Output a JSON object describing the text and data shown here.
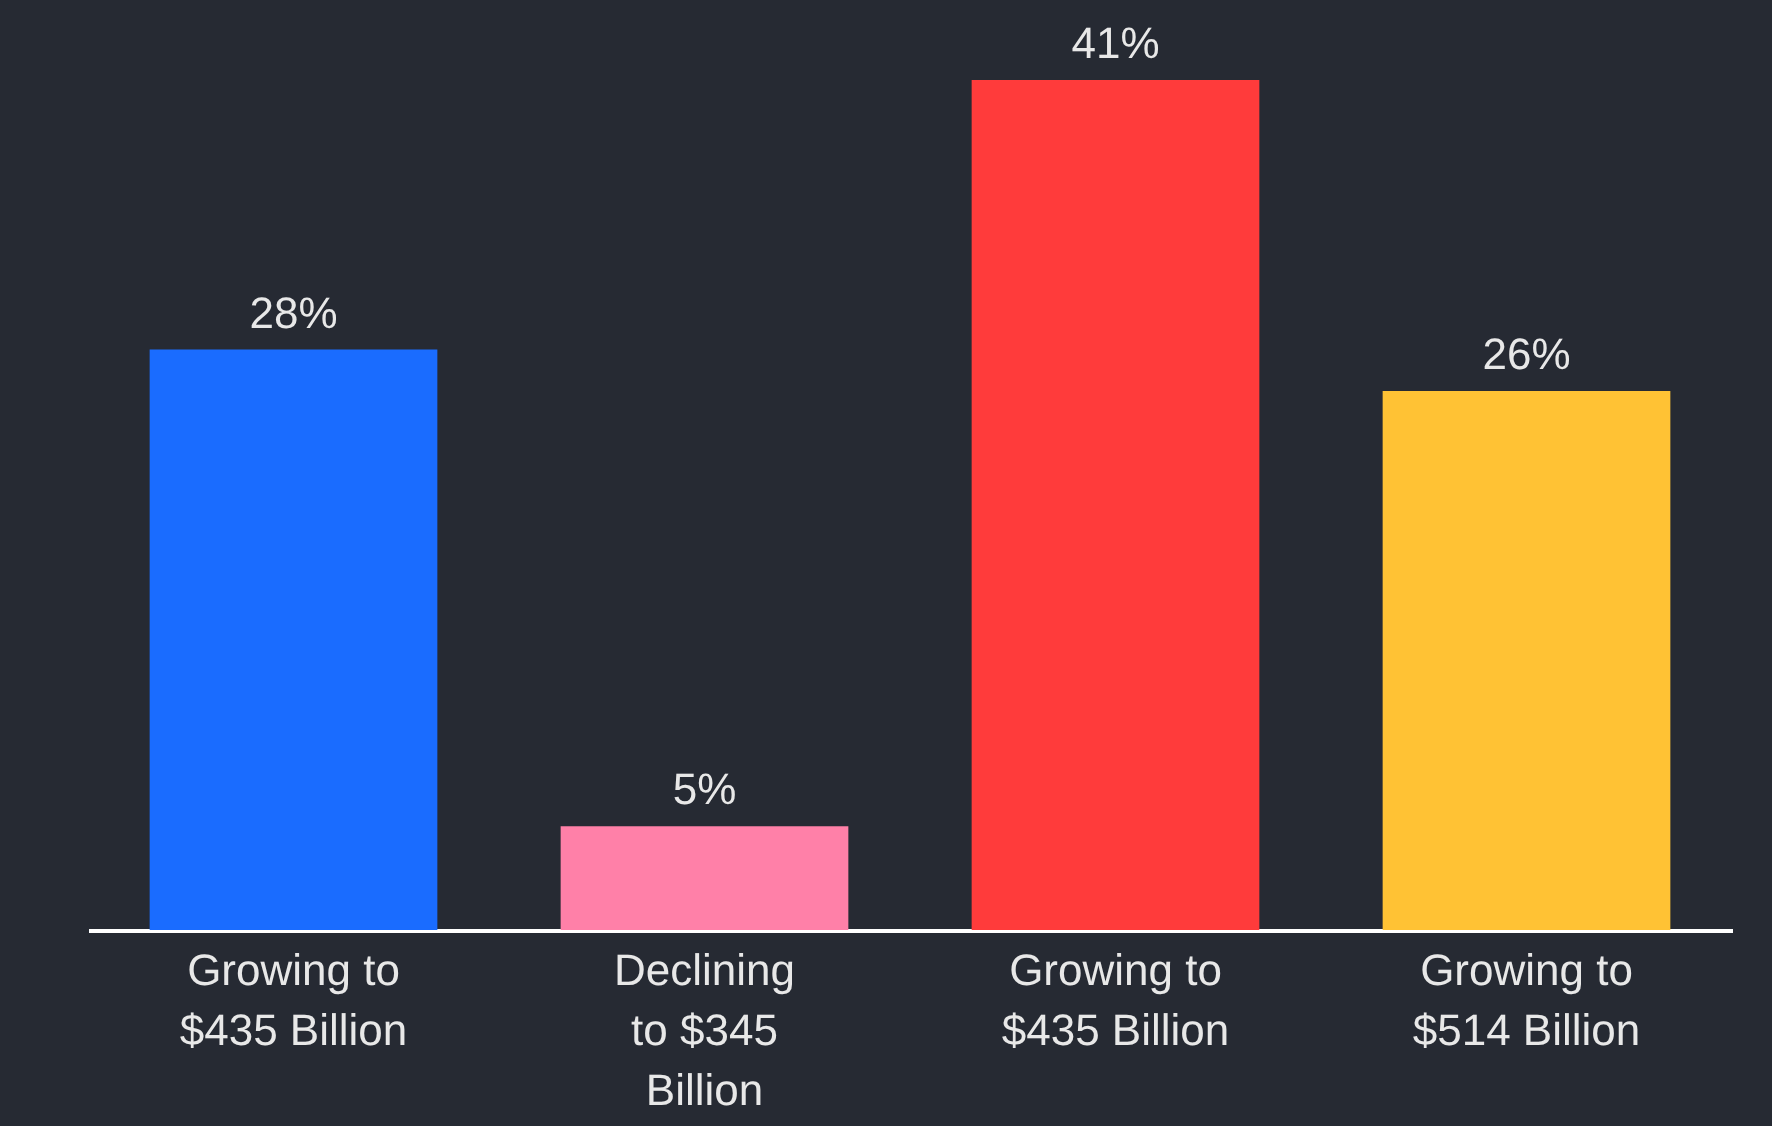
{
  "chart_data": {
    "type": "bar",
    "categories": [
      "Growing to\n$435 Billion",
      "Declining\nto $345\nBillion",
      "Growing to\n$435 Billion",
      "Growing to\n$514 Billion"
    ],
    "values": [
      28,
      5,
      41,
      26
    ],
    "colors": [
      "#1a6cff",
      "#ff80a8",
      "#ff3b3b",
      "#ffc234"
    ],
    "value_labels": [
      "28%",
      "5%",
      "41%",
      "26%"
    ],
    "ylim": [
      0,
      41
    ]
  }
}
